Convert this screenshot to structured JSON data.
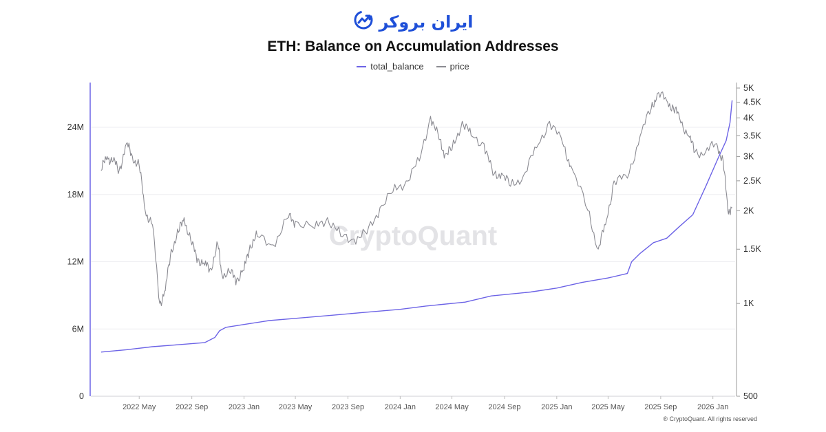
{
  "brand": {
    "logo_text": "ایران بروکر",
    "icon": "chart-growth-icon",
    "color": "#1e4fd8"
  },
  "watermark": "CryptoQuant",
  "footer": "® CryptoQuant. All rights reserved",
  "chart_data": {
    "type": "line",
    "title": "ETH: Balance on Accumulation Addresses",
    "legend_placement": "top-center",
    "grid": true,
    "x_ticks": [
      "2022 May",
      "2022 Sep",
      "2023 Jan",
      "2023 May",
      "2023 Sep",
      "2024 Jan",
      "2024 May",
      "2024 Sep",
      "2025 Jan",
      "2025 May",
      "2025 Sep",
      "2026 Jan"
    ],
    "y_left": {
      "ticks": [
        "0",
        "6M",
        "12M",
        "18M",
        "24M"
      ],
      "tick_values": [
        0,
        6000000,
        12000000,
        18000000,
        24000000
      ],
      "range": [
        0,
        27500000
      ]
    },
    "y_right": {
      "scale": "log",
      "ticks": [
        "500",
        "1K",
        "1.5K",
        "2K",
        "2.5K",
        "3K",
        "3.5K",
        "4K",
        "4.5K",
        "5K"
      ],
      "tick_values": [
        500,
        1000,
        1500,
        2000,
        2500,
        3000,
        3500,
        4000,
        4500,
        5000
      ],
      "range": [
        500,
        5000
      ]
    },
    "series": [
      {
        "name": "total_balance",
        "color": "#6c63e6",
        "axis": "left",
        "x": [
          "2022-02-01",
          "2022-04-01",
          "2022-06-01",
          "2022-08-01",
          "2022-10-01",
          "2022-10-25",
          "2022-11-05",
          "2022-11-20",
          "2023-01-01",
          "2023-03-01",
          "2023-05-01",
          "2023-08-01",
          "2023-10-01",
          "2024-01-01",
          "2024-03-01",
          "2024-06-01",
          "2024-08-01",
          "2024-11-01",
          "2025-01-01",
          "2025-03-01",
          "2025-05-01",
          "2025-06-15",
          "2025-06-25",
          "2025-07-15",
          "2025-08-15",
          "2025-09-15",
          "2025-10-15",
          "2025-11-15",
          "2025-12-15",
          "2026-01-15",
          "2026-02-01",
          "2026-02-10",
          "2026-02-15"
        ],
        "values": [
          3940000,
          4150000,
          4420000,
          4600000,
          4780000,
          5250000,
          5850000,
          6150000,
          6400000,
          6750000,
          6950000,
          7250000,
          7450000,
          7750000,
          8050000,
          8400000,
          8950000,
          9300000,
          9650000,
          10150000,
          10550000,
          10950000,
          12000000,
          12750000,
          13700000,
          14100000,
          15150000,
          16200000,
          18700000,
          21400000,
          22800000,
          24400000,
          26400000
        ]
      },
      {
        "name": "price",
        "color": "#8b8b92",
        "axis": "right",
        "x": [
          "2022-02-01",
          "2022-02-15",
          "2022-03-01",
          "2022-03-15",
          "2022-04-01",
          "2022-04-15",
          "2022-05-01",
          "2022-05-15",
          "2022-06-01",
          "2022-06-18",
          "2022-07-01",
          "2022-07-15",
          "2022-08-01",
          "2022-08-14",
          "2022-09-01",
          "2022-09-15",
          "2022-10-01",
          "2022-10-15",
          "2022-11-01",
          "2022-11-10",
          "2022-12-01",
          "2022-12-15",
          "2023-01-01",
          "2023-01-15",
          "2023-02-01",
          "2023-03-10",
          "2023-04-15",
          "2023-05-01",
          "2023-06-15",
          "2023-07-15",
          "2023-08-15",
          "2023-09-15",
          "2023-10-15",
          "2023-11-15",
          "2023-12-15",
          "2024-01-15",
          "2024-02-15",
          "2024-03-12",
          "2024-04-01",
          "2024-04-15",
          "2024-05-01",
          "2024-05-25",
          "2024-06-15",
          "2024-07-15",
          "2024-08-05",
          "2024-08-25",
          "2024-09-15",
          "2024-10-15",
          "2024-11-15",
          "2024-12-15",
          "2025-01-15",
          "2025-02-03",
          "2025-03-15",
          "2025-04-08",
          "2025-04-25",
          "2025-05-15",
          "2025-06-15",
          "2025-07-15",
          "2025-08-10",
          "2025-08-24",
          "2025-09-15",
          "2025-10-01",
          "2025-10-15",
          "2025-11-05",
          "2025-11-20",
          "2025-12-15",
          "2026-01-10",
          "2026-01-25",
          "2026-02-05",
          "2026-02-15"
        ],
        "values": [
          2700,
          3000,
          2900,
          2700,
          3300,
          3000,
          2800,
          2000,
          1800,
          1000,
          1100,
          1500,
          1700,
          1900,
          1550,
          1400,
          1330,
          1300,
          1550,
          1250,
          1250,
          1200,
          1280,
          1550,
          1650,
          1550,
          1900,
          1850,
          1750,
          1900,
          1650,
          1620,
          1680,
          2050,
          2300,
          2500,
          2900,
          4050,
          3400,
          3050,
          3150,
          3900,
          3500,
          3300,
          2600,
          2650,
          2400,
          2600,
          3200,
          3900,
          3300,
          2800,
          2000,
          1500,
          1800,
          2500,
          2550,
          3500,
          4300,
          4800,
          4550,
          4300,
          4000,
          3500,
          3100,
          3100,
          3300,
          2900,
          2000,
          2050
        ]
      }
    ]
  }
}
